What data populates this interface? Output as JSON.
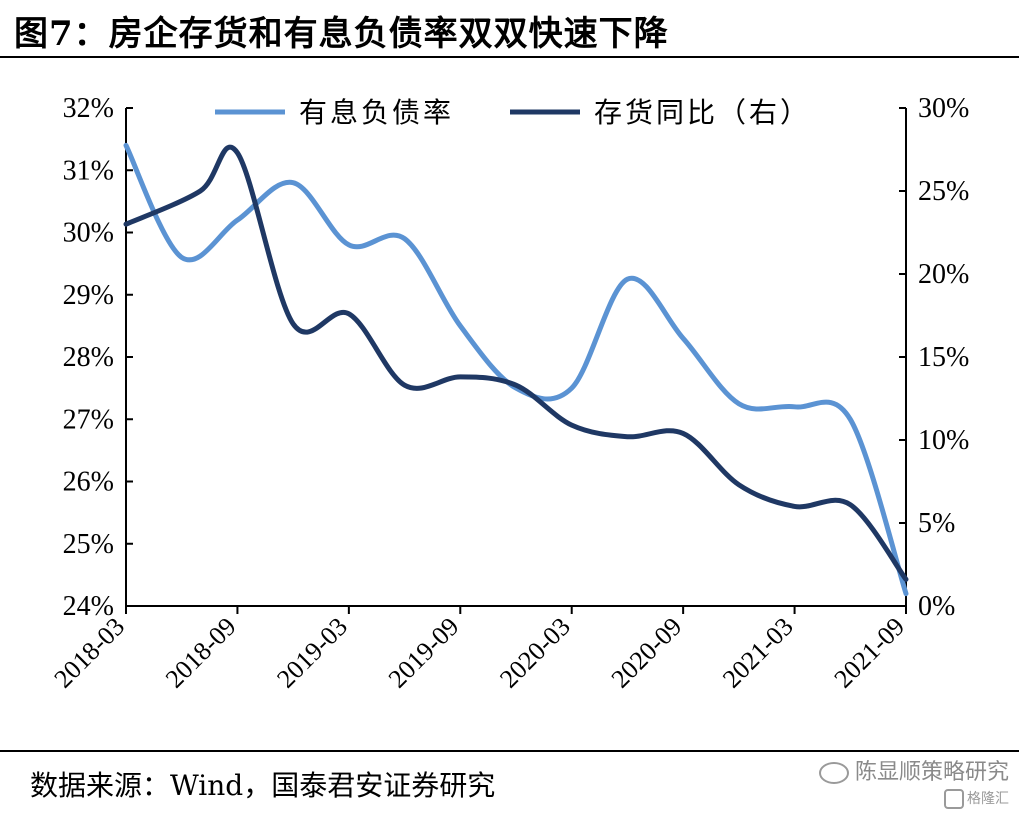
{
  "title": "图7：房企存货和有息负债率双双快速下降",
  "source": "数据来源：Wind，国泰君安证券研究",
  "watermark": {
    "account": "陈显顺策略研究",
    "platform": "格隆汇",
    "wechat_icon": "wechat-icon",
    "platform_icon": "gelonghui-logo"
  },
  "chart_data": {
    "type": "line",
    "x_ticks": [
      "2018-03",
      "2018-09",
      "2019-03",
      "2019-09",
      "2020-03",
      "2020-09",
      "2021-03",
      "2021-09"
    ],
    "x_range": [
      "2018-03",
      "2021-09"
    ],
    "y_left": {
      "min": 24,
      "max": 32,
      "step": 1,
      "unit": "%",
      "tick_labels": [
        "24%",
        "25%",
        "26%",
        "27%",
        "28%",
        "29%",
        "30%",
        "31%",
        "32%"
      ]
    },
    "y_right": {
      "min": 0,
      "max": 30,
      "step": 5,
      "unit": "%",
      "tick_labels": [
        "0%",
        "5%",
        "10%",
        "15%",
        "20%",
        "25%",
        "30%"
      ]
    },
    "grid": false,
    "legend_position": "top",
    "series": [
      {
        "name": "有息负债率",
        "axis": "left",
        "color": "#5b93d3",
        "x": [
          "2018-03",
          "2018-06",
          "2018-09",
          "2018-12",
          "2019-03",
          "2019-06",
          "2019-09",
          "2019-12",
          "2020-03",
          "2020-06",
          "2020-09",
          "2020-12",
          "2021-03",
          "2021-06",
          "2021-09"
        ],
        "y": [
          31.4,
          29.6,
          30.2,
          30.8,
          29.8,
          29.9,
          28.5,
          27.5,
          27.5,
          29.25,
          28.3,
          27.25,
          27.2,
          27.0,
          24.2
        ]
      },
      {
        "name": "存货同比（右）",
        "axis": "right",
        "color": "#1f3864",
        "x": [
          "2018-03",
          "2018-07",
          "2018-09",
          "2018-12",
          "2019-03",
          "2019-06",
          "2019-09",
          "2019-12",
          "2020-03",
          "2020-06",
          "2020-09",
          "2020-12",
          "2021-03",
          "2021-06",
          "2021-09"
        ],
        "y": [
          23.0,
          25.0,
          27.3,
          17.0,
          17.6,
          13.3,
          13.8,
          13.3,
          10.9,
          10.2,
          10.4,
          7.3,
          6.0,
          6.1,
          1.6
        ]
      }
    ]
  }
}
